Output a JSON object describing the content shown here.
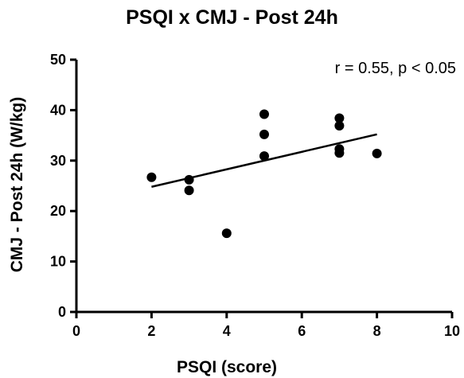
{
  "chart_data": {
    "type": "scatter",
    "title": "PSQI x CMJ - Post 24h",
    "xlabel": "PSQI (score)",
    "ylabel": "CMJ - Post 24h (W/kg)",
    "annotation": "r = 0.55, p < 0.05",
    "xlim": [
      0,
      10
    ],
    "ylim": [
      0,
      50
    ],
    "x_ticks": [
      0,
      2,
      4,
      6,
      8,
      10
    ],
    "y_ticks": [
      0,
      10,
      20,
      30,
      40,
      50
    ],
    "grid": false,
    "points": [
      {
        "x": 2,
        "y": 26.7
      },
      {
        "x": 3,
        "y": 26.2
      },
      {
        "x": 3,
        "y": 24.1
      },
      {
        "x": 4,
        "y": 15.6
      },
      {
        "x": 5,
        "y": 39.2
      },
      {
        "x": 5,
        "y": 35.2
      },
      {
        "x": 5,
        "y": 30.9
      },
      {
        "x": 7,
        "y": 38.4
      },
      {
        "x": 7,
        "y": 36.9
      },
      {
        "x": 7,
        "y": 32.3
      },
      {
        "x": 7,
        "y": 31.5
      },
      {
        "x": 8,
        "y": 31.4
      }
    ],
    "regression_line": {
      "x": [
        2,
        8
      ],
      "y": [
        24.8,
        35.2
      ]
    },
    "colors": {
      "points": "#000000",
      "line": "#000000",
      "axes": "#000000"
    }
  }
}
